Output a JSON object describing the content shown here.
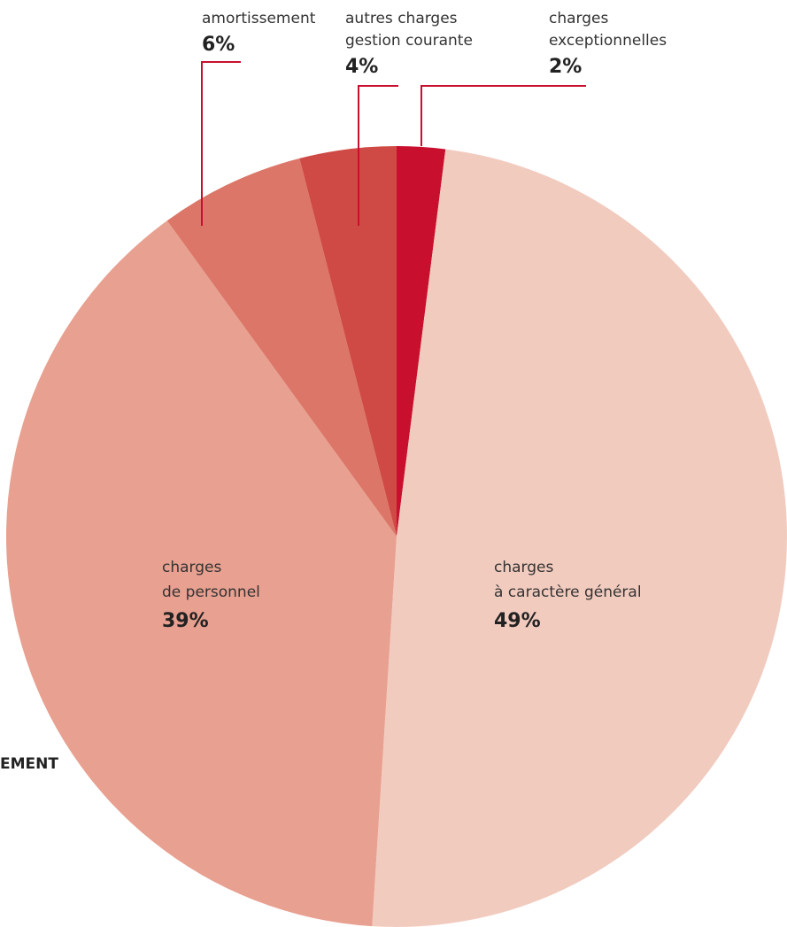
{
  "chart_data": {
    "type": "pie",
    "categories": [
      [
        "charges",
        "exceptionnelles"
      ],
      [
        "charges",
        "à caractère général"
      ],
      [
        "charges",
        "de personnel"
      ],
      [
        "amortissement"
      ],
      [
        "autres charges",
        "gestion courante"
      ]
    ],
    "values": [
      2,
      49,
      39,
      6,
      4
    ],
    "value_labels": [
      "2%",
      "49%",
      "39%",
      "6%",
      "4%"
    ],
    "colors": [
      "#c8102e",
      "#f2cbbf",
      "#e8a090",
      "#db7668",
      "#d04a45"
    ],
    "leader_color": "#c8102e",
    "annotation": "EMENT"
  }
}
